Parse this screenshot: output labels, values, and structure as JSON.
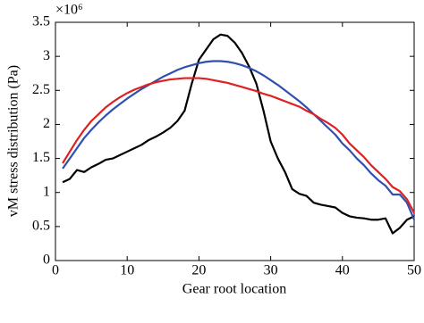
{
  "chart_data": {
    "type": "line",
    "xlabel": "Gear root location",
    "ylabel": "vM stress distribution (Pa)",
    "y_multiplier": "×10⁶",
    "x": [
      1,
      2,
      3,
      4,
      5,
      6,
      7,
      8,
      9,
      10,
      11,
      12,
      13,
      14,
      15,
      16,
      17,
      18,
      19,
      20,
      21,
      22,
      23,
      24,
      25,
      26,
      27,
      28,
      29,
      30,
      31,
      32,
      33,
      34,
      35,
      36,
      37,
      38,
      39,
      40,
      41,
      42,
      43,
      44,
      45,
      46,
      47,
      48,
      49,
      50
    ],
    "series": [
      {
        "color": "#000000",
        "values": [
          1.15,
          1.2,
          1.33,
          1.3,
          1.37,
          1.42,
          1.48,
          1.5,
          1.55,
          1.6,
          1.65,
          1.7,
          1.77,
          1.82,
          1.88,
          1.95,
          2.05,
          2.2,
          2.6,
          2.95,
          3.1,
          3.25,
          3.32,
          3.3,
          3.2,
          3.05,
          2.85,
          2.6,
          2.2,
          1.75,
          1.5,
          1.3,
          1.05,
          0.98,
          0.95,
          0.85,
          0.82,
          0.8,
          0.78,
          0.7,
          0.65,
          0.63,
          0.62,
          0.6,
          0.6,
          0.62,
          0.4,
          0.48,
          0.6,
          0.65
        ]
      },
      {
        "color": "#3050b0",
        "values": [
          1.35,
          1.5,
          1.65,
          1.8,
          1.92,
          2.03,
          2.13,
          2.22,
          2.3,
          2.38,
          2.45,
          2.52,
          2.58,
          2.64,
          2.7,
          2.75,
          2.8,
          2.84,
          2.87,
          2.9,
          2.92,
          2.93,
          2.93,
          2.92,
          2.9,
          2.87,
          2.83,
          2.78,
          2.72,
          2.65,
          2.58,
          2.5,
          2.42,
          2.34,
          2.25,
          2.15,
          2.05,
          1.95,
          1.85,
          1.72,
          1.62,
          1.5,
          1.4,
          1.28,
          1.18,
          1.1,
          0.97,
          0.97,
          0.85,
          0.6
        ]
      },
      {
        "color": "#e02020",
        "values": [
          1.43,
          1.6,
          1.77,
          1.92,
          2.05,
          2.15,
          2.25,
          2.33,
          2.4,
          2.46,
          2.51,
          2.55,
          2.59,
          2.62,
          2.64,
          2.66,
          2.67,
          2.68,
          2.68,
          2.68,
          2.67,
          2.65,
          2.63,
          2.61,
          2.58,
          2.55,
          2.52,
          2.49,
          2.45,
          2.42,
          2.38,
          2.34,
          2.3,
          2.26,
          2.2,
          2.15,
          2.08,
          2.02,
          1.95,
          1.85,
          1.72,
          1.62,
          1.52,
          1.4,
          1.3,
          1.2,
          1.08,
          1.02,
          0.9,
          0.7
        ]
      }
    ],
    "xlim": [
      0,
      50
    ],
    "xticks": [
      0,
      10,
      20,
      30,
      40,
      50
    ],
    "ylim": [
      0,
      3.5
    ],
    "yticks": [
      0,
      0.5,
      1,
      1.5,
      2,
      2.5,
      3,
      3.5
    ],
    "grid": false
  }
}
